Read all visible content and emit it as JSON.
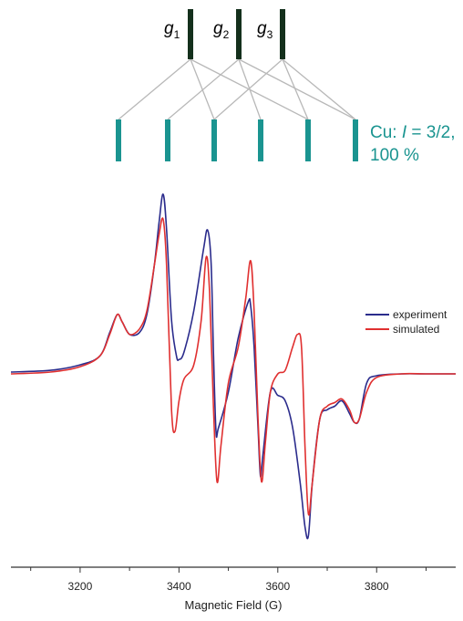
{
  "stick_diagram": {
    "g_labels": [
      {
        "symbol": "g",
        "sub": "1"
      },
      {
        "symbol": "g",
        "sub": "2"
      },
      {
        "symbol": "g",
        "sub": "3"
      }
    ],
    "hyperfine_components": 6,
    "cu_label": {
      "prefix": "Cu: ",
      "italic": "I",
      "rest": " = 3/2,",
      "line2": "100 %"
    },
    "colors": {
      "g_stick": "#14301c",
      "cu_stick": "#1a9490",
      "connector": "#b8b8b8",
      "cu_text": "#1a9490"
    }
  },
  "chart_data": {
    "type": "line",
    "title": "",
    "xlabel": "Magnetic Field (G)",
    "ylabel": "",
    "xlim": [
      3060,
      3960
    ],
    "ylim": [
      -1.0,
      1.0
    ],
    "xticks": [
      3200,
      3400,
      3600,
      3800
    ],
    "grid": false,
    "legend_position": "right",
    "series": [
      {
        "name": "experiment",
        "color": "#2b2c8c",
        "x": [
          3060,
          3140,
          3200,
          3240,
          3260,
          3275,
          3285,
          3300,
          3320,
          3335,
          3350,
          3360,
          3368,
          3375,
          3385,
          3395,
          3400,
          3410,
          3430,
          3450,
          3458,
          3465,
          3470,
          3475,
          3480,
          3500,
          3520,
          3540,
          3545,
          3552,
          3560,
          3565,
          3570,
          3585,
          3600,
          3615,
          3630,
          3645,
          3655,
          3662,
          3670,
          3685,
          3700,
          3715,
          3730,
          3745,
          3755,
          3765,
          3780,
          3800,
          3850,
          3900,
          3960
        ],
        "y": [
          0.01,
          0.02,
          0.05,
          0.1,
          0.23,
          0.33,
          0.29,
          0.22,
          0.23,
          0.33,
          0.6,
          0.85,
          1.0,
          0.8,
          0.3,
          0.1,
          0.08,
          0.12,
          0.35,
          0.7,
          0.8,
          0.62,
          0.1,
          -0.32,
          -0.3,
          -0.1,
          0.2,
          0.4,
          0.38,
          0.15,
          -0.3,
          -0.57,
          -0.45,
          -0.1,
          -0.12,
          -0.15,
          -0.3,
          -0.6,
          -0.85,
          -0.9,
          -0.6,
          -0.25,
          -0.2,
          -0.18,
          -0.15,
          -0.22,
          -0.27,
          -0.25,
          -0.05,
          -0.01,
          0.0,
          0.0,
          0.0
        ]
      },
      {
        "name": "simulated",
        "color": "#e03030",
        "x": [
          3060,
          3140,
          3200,
          3240,
          3260,
          3275,
          3285,
          3300,
          3320,
          3335,
          3350,
          3360,
          3368,
          3375,
          3385,
          3392,
          3400,
          3410,
          3430,
          3445,
          3455,
          3462,
          3470,
          3477,
          3485,
          3500,
          3520,
          3535,
          3545,
          3552,
          3560,
          3567,
          3575,
          3585,
          3600,
          3615,
          3630,
          3640,
          3648,
          3655,
          3662,
          3670,
          3685,
          3700,
          3715,
          3730,
          3745,
          3755,
          3765,
          3780,
          3800,
          3850,
          3900,
          3960
        ],
        "y": [
          0.0,
          0.01,
          0.04,
          0.1,
          0.22,
          0.33,
          0.29,
          0.22,
          0.25,
          0.35,
          0.6,
          0.78,
          0.86,
          0.6,
          -0.2,
          -0.32,
          -0.15,
          -0.03,
          0.05,
          0.3,
          0.65,
          0.45,
          -0.2,
          -0.6,
          -0.4,
          -0.05,
          0.15,
          0.42,
          0.63,
          0.35,
          -0.25,
          -0.6,
          -0.38,
          -0.1,
          0.0,
          0.02,
          0.15,
          0.22,
          0.15,
          -0.4,
          -0.78,
          -0.6,
          -0.25,
          -0.18,
          -0.16,
          -0.14,
          -0.2,
          -0.27,
          -0.25,
          -0.1,
          -0.02,
          0.0,
          0.0,
          0.0
        ]
      }
    ]
  }
}
